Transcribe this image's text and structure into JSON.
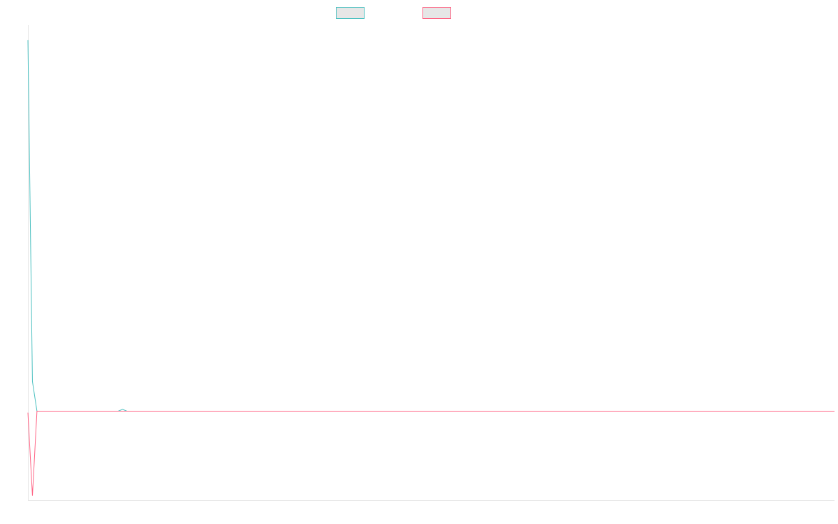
{
  "chart_data": {
    "type": "line",
    "title": "",
    "xlabel": "",
    "ylabel": "",
    "x_count": 180,
    "ylim": [
      -6,
      26
    ],
    "grid": false,
    "legend": {
      "placement": "top-center",
      "show_labels": false
    },
    "series": [
      {
        "color": "#4bc0c0",
        "fill": "#e6e6e6",
        "points": [
          [
            0,
            25
          ],
          [
            1,
            2
          ],
          [
            2,
            0
          ],
          [
            20,
            0
          ],
          [
            21,
            0.12
          ],
          [
            22,
            0
          ],
          [
            179,
            0
          ]
        ]
      },
      {
        "color": "#ff6384",
        "fill": "#e6e6e6",
        "points": [
          [
            0,
            -0.1
          ],
          [
            1,
            -5.7
          ],
          [
            2,
            0
          ],
          [
            179,
            0
          ]
        ]
      }
    ]
  }
}
